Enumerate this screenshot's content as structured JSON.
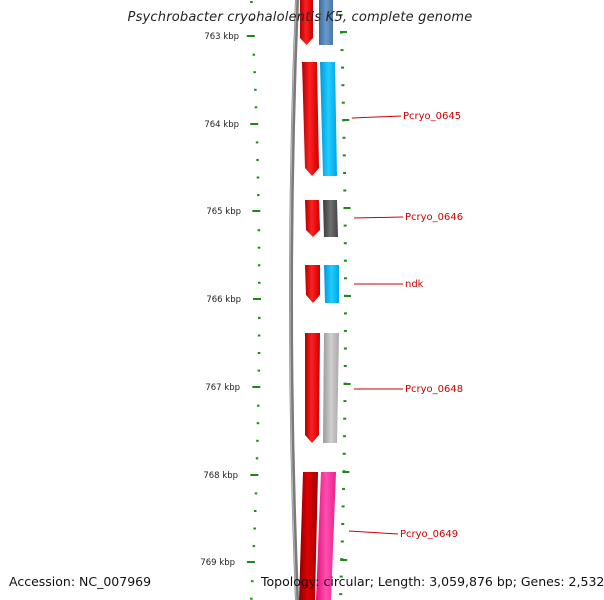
{
  "title": "Psychrobacter cryohalolentis K5, complete genome",
  "footer": {
    "accession": "Accession: NC_007969",
    "summary": "Topology: circular; Length: 3,059,876 bp; Genes: 2,532"
  },
  "axis": {
    "major_ticks": [
      {
        "label": "763 kbp"
      },
      {
        "label": "764 kbp"
      },
      {
        "label": "765 kbp"
      },
      {
        "label": "766 kbp"
      },
      {
        "label": "767 kbp"
      },
      {
        "label": "768 kbp"
      },
      {
        "label": "769 kbp"
      }
    ]
  },
  "genes": [
    {
      "label": "",
      "outer_color": "#ff0000",
      "inner_color": "#5a8bbd"
    },
    {
      "label": "Pcryo_0645",
      "outer_color": "#ff0000",
      "inner_color": "#00bfff"
    },
    {
      "label": "Pcryo_0646",
      "outer_color": "#ff0000",
      "inner_color": "#555555"
    },
    {
      "label": "ndk",
      "outer_color": "#ff0000",
      "inner_color": "#00bfff"
    },
    {
      "label": "Pcryo_0648",
      "outer_color": "#ff0000",
      "inner_color": "#b8b8b8"
    },
    {
      "label": "Pcryo_0649",
      "outer_color": "#e00000",
      "inner_color": "#ff2a9a"
    }
  ],
  "colors": {
    "backbone": "#777777",
    "tick": "#1a8a1a",
    "label_line": "#cc0000"
  }
}
